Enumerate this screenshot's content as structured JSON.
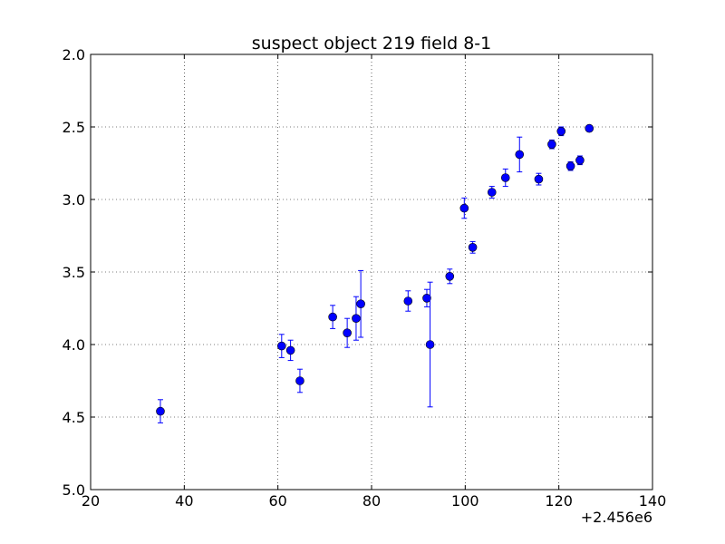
{
  "chart_data": {
    "type": "scatter",
    "title": "suspect object 219 field 8-1",
    "xlabel": "",
    "ylabel": "",
    "x_offset_label": "+2.456e6",
    "xlim": [
      20,
      140
    ],
    "ylim": [
      2.0,
      5.0
    ],
    "y_inverted": true,
    "grid": true,
    "x_ticks": [
      "20",
      "40",
      "60",
      "80",
      "100",
      "120",
      "140"
    ],
    "y_ticks": [
      "2.0",
      "2.5",
      "3.0",
      "3.5",
      "4.0",
      "4.5",
      "5.0"
    ],
    "marker_color": "#0000ff",
    "errorbar_color": "#0000ff",
    "points": [
      {
        "x": 34.9,
        "y": 4.46,
        "yerr": 0.08
      },
      {
        "x": 60.8,
        "y": 4.01,
        "yerr": 0.08
      },
      {
        "x": 62.7,
        "y": 4.04,
        "yerr": 0.07
      },
      {
        "x": 64.7,
        "y": 4.25,
        "yerr": 0.08
      },
      {
        "x": 71.7,
        "y": 3.81,
        "yerr": 0.08
      },
      {
        "x": 74.8,
        "y": 3.92,
        "yerr": 0.1
      },
      {
        "x": 76.7,
        "y": 3.82,
        "yerr": 0.15
      },
      {
        "x": 77.7,
        "y": 3.72,
        "yerr": 0.23
      },
      {
        "x": 87.8,
        "y": 3.7,
        "yerr": 0.07
      },
      {
        "x": 91.8,
        "y": 3.68,
        "yerr": 0.06
      },
      {
        "x": 92.5,
        "y": 4.0,
        "yerr": 0.43
      },
      {
        "x": 96.7,
        "y": 3.53,
        "yerr": 0.05
      },
      {
        "x": 99.8,
        "y": 3.06,
        "yerr": 0.07
      },
      {
        "x": 101.6,
        "y": 3.33,
        "yerr": 0.04
      },
      {
        "x": 105.7,
        "y": 2.95,
        "yerr": 0.04
      },
      {
        "x": 108.6,
        "y": 2.85,
        "yerr": 0.06
      },
      {
        "x": 111.6,
        "y": 2.69,
        "yerr": 0.12
      },
      {
        "x": 115.7,
        "y": 2.86,
        "yerr": 0.04
      },
      {
        "x": 118.5,
        "y": 2.62,
        "yerr": 0.03
      },
      {
        "x": 120.5,
        "y": 2.53,
        "yerr": 0.03
      },
      {
        "x": 122.5,
        "y": 2.77,
        "yerr": 0.03
      },
      {
        "x": 124.5,
        "y": 2.73,
        "yerr": 0.03
      },
      {
        "x": 126.5,
        "y": 2.51,
        "yerr": 0.02
      }
    ]
  }
}
